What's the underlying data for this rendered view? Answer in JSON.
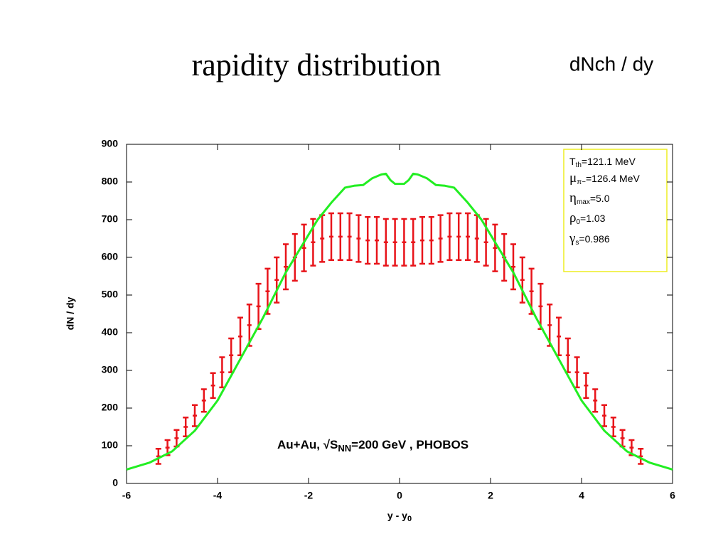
{
  "title": "rapidity distribution",
  "subtitle": "dNch / dy",
  "chart_data": {
    "type": "errorbar-line",
    "xlabel": {
      "text": "y - y",
      "sub": "0"
    },
    "ylabel": "dN / dy",
    "xlim": [
      -6,
      6
    ],
    "xticks": [
      -6,
      -4,
      -2,
      0,
      2,
      4,
      6
    ],
    "ylim": [
      0,
      900
    ],
    "yticks": [
      0,
      100,
      200,
      300,
      400,
      500,
      600,
      700,
      800,
      900
    ],
    "annotation": {
      "pre": "Au+Au, √S",
      "sub": "NN",
      "post": "=200 GeV , PHOBOS"
    },
    "legend_box": [
      {
        "symbol": "T",
        "sub": "th",
        "text": "=121.1 MeV"
      },
      {
        "symbol": "μ",
        "sub": "π−",
        "text": "=126.4 MeV"
      },
      {
        "symbol": "η",
        "sub": "max",
        "text": "=5.0"
      },
      {
        "symbol": "ρ",
        "sub": "0",
        "text": "=1.03"
      },
      {
        "symbol": "γ",
        "sub": "s",
        "text": "=0.986"
      }
    ],
    "series": [
      {
        "color": "#e8141a",
        "kind": "errorbar",
        "x": [
          -5.3,
          -5.1,
          -4.9,
          -4.7,
          -4.5,
          -4.3,
          -4.1,
          -3.9,
          -3.7,
          -3.5,
          -3.3,
          -3.1,
          -2.9,
          -2.7,
          -2.5,
          -2.3,
          -2.1,
          -1.9,
          -1.7,
          -1.5,
          -1.3,
          -1.1,
          -0.9,
          -0.7,
          -0.5,
          -0.3,
          -0.1,
          0.1,
          0.3,
          0.5,
          0.7,
          0.9,
          1.1,
          1.3,
          1.5,
          1.7,
          1.9,
          2.1,
          2.3,
          2.5,
          2.7,
          2.9,
          3.1,
          3.3,
          3.5,
          3.7,
          3.9,
          4.1,
          4.3,
          4.5,
          4.7,
          4.9,
          5.1,
          5.3
        ],
        "values": [
          72,
          95,
          120,
          150,
          180,
          220,
          260,
          295,
          340,
          390,
          420,
          470,
          510,
          540,
          575,
          600,
          625,
          640,
          650,
          655,
          655,
          655,
          650,
          645,
          645,
          640,
          640,
          640,
          640,
          645,
          645,
          650,
          655,
          655,
          655,
          650,
          640,
          625,
          600,
          575,
          540,
          510,
          470,
          420,
          390,
          340,
          295,
          260,
          220,
          180,
          150,
          120,
          95,
          72
        ],
        "errors": [
          20,
          20,
          22,
          25,
          28,
          30,
          33,
          40,
          45,
          50,
          55,
          60,
          60,
          60,
          60,
          62,
          62,
          62,
          62,
          62,
          62,
          62,
          62,
          62,
          62,
          62,
          62,
          62,
          62,
          62,
          62,
          62,
          62,
          62,
          62,
          62,
          62,
          62,
          62,
          60,
          60,
          60,
          60,
          55,
          50,
          45,
          40,
          33,
          30,
          28,
          25,
          22,
          20,
          20
        ]
      },
      {
        "color": "#22ee22",
        "kind": "line",
        "x": [
          -6,
          -5.5,
          -5,
          -4.5,
          -4,
          -3.5,
          -3,
          -2.5,
          -2,
          -1.8,
          -1.5,
          -1.2,
          -1,
          -0.8,
          -0.6,
          -0.4,
          -0.3,
          -0.2,
          -0.1,
          0,
          0.1,
          0.2,
          0.3,
          0.4,
          0.6,
          0.8,
          1,
          1.2,
          1.5,
          1.8,
          2,
          2.5,
          3,
          3.5,
          4,
          4.5,
          5,
          5.5,
          6
        ],
        "values": [
          37,
          55,
          85,
          140,
          220,
          330,
          440,
          560,
          660,
          700,
          745,
          785,
          790,
          792,
          810,
          820,
          822,
          805,
          795,
          795,
          795,
          805,
          822,
          820,
          810,
          792,
          790,
          785,
          745,
          700,
          660,
          560,
          440,
          330,
          220,
          140,
          85,
          55,
          37
        ]
      }
    ]
  }
}
